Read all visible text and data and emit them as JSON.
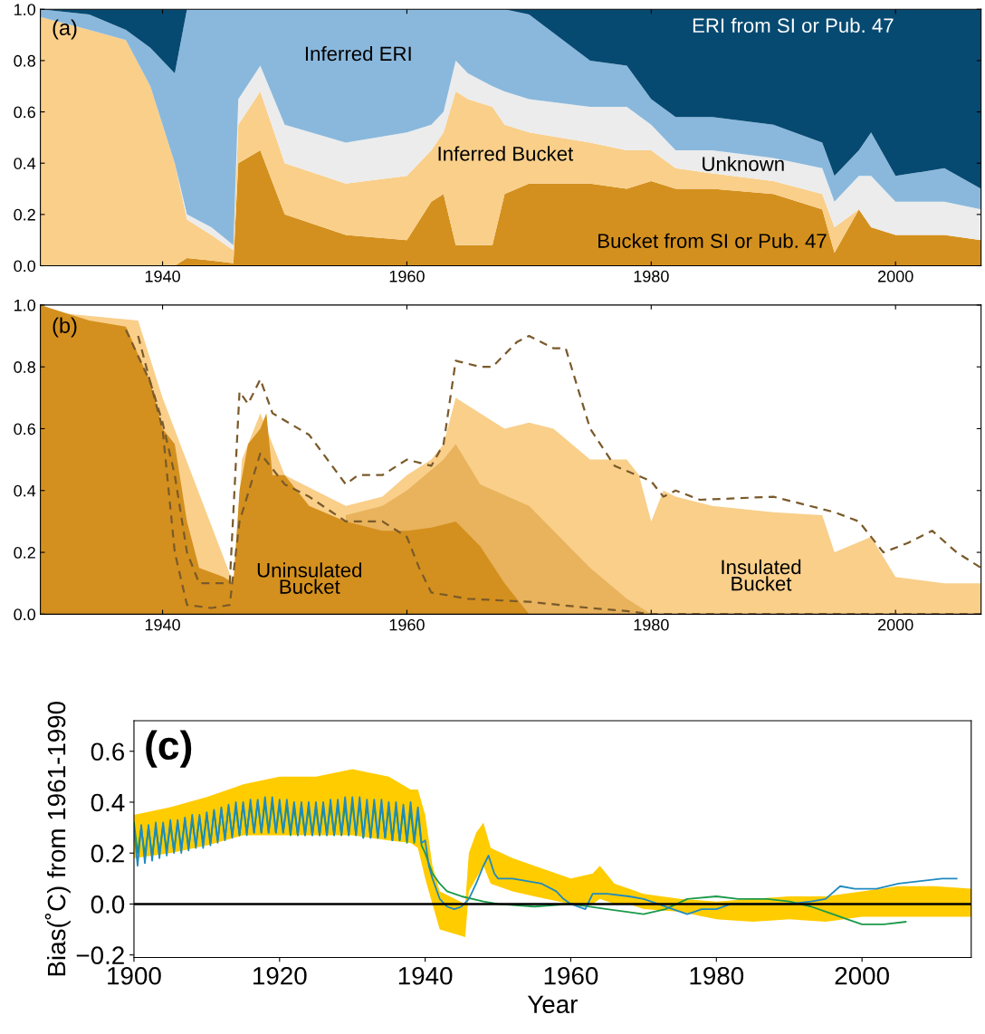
{
  "chart_data": [
    {
      "type": "area",
      "stacked": true,
      "xlim": [
        1930,
        2007
      ],
      "ylim": [
        0,
        1.0
      ],
      "xticks": [
        1940,
        1960,
        1980,
        2000
      ],
      "yticks": [
        {
          "value": 0,
          "label": "0.0"
        },
        {
          "value": 0.2,
          "label": "0.2"
        },
        {
          "value": 0.4,
          "label": "0.4"
        },
        {
          "value": 0.6,
          "label": "0.6"
        },
        {
          "value": 0.8,
          "label": "0.8"
        },
        {
          "value": 1.0,
          "label": "1.0"
        }
      ],
      "grid": false,
      "x": [
        1930,
        1934,
        1937,
        1939,
        1941,
        1942,
        1944,
        1945.8,
        1946.2,
        1948,
        1950,
        1955,
        1960,
        1962,
        1963,
        1964,
        1965,
        1967,
        1968,
        1970,
        1975,
        1978,
        1980,
        1982,
        1985,
        1990,
        1994,
        1995,
        1997,
        1998,
        2000,
        2004,
        2007
      ],
      "series": [
        {
          "color": "#d4901e",
          "values": [
            0,
            0,
            0,
            0,
            0,
            0.03,
            0.02,
            0.01,
            0.4,
            0.45,
            0.2,
            0.12,
            0.1,
            0.25,
            0.28,
            0.08,
            0.08,
            0.08,
            0.28,
            0.32,
            0.32,
            0.3,
            0.33,
            0.3,
            0.3,
            0.28,
            0.22,
            0.05,
            0.22,
            0.15,
            0.12,
            0.12,
            0.1
          ]
        },
        {
          "color": "#f9cf8a",
          "values": [
            0.97,
            0.92,
            0.88,
            0.7,
            0.4,
            0.15,
            0.1,
            0.05,
            0.15,
            0.23,
            0.2,
            0.2,
            0.25,
            0.2,
            0.24,
            0.6,
            0.57,
            0.54,
            0.27,
            0.2,
            0.16,
            0.15,
            0.12,
            0.08,
            0.06,
            0.05,
            0.06,
            0.1,
            0,
            0,
            0,
            0,
            0
          ]
        },
        {
          "color": "#ececec",
          "values": [
            0,
            0,
            0,
            0,
            0,
            0.02,
            0.03,
            0.02,
            0.1,
            0.1,
            0.15,
            0.16,
            0.17,
            0.1,
            0.08,
            0.12,
            0.1,
            0.08,
            0.13,
            0.13,
            0.14,
            0.17,
            0.1,
            0.07,
            0.09,
            0.09,
            0.1,
            0.1,
            0.13,
            0.2,
            0.13,
            0.13,
            0.12
          ]
        },
        {
          "color": "#8ab8dc",
          "values": [
            0.03,
            0.06,
            0.04,
            0.15,
            0.35,
            0.8,
            0.85,
            0.92,
            0.35,
            0.22,
            0.45,
            0.52,
            0.48,
            0.45,
            0.4,
            0.2,
            0.25,
            0.3,
            0.32,
            0.33,
            0.18,
            0.16,
            0.1,
            0.13,
            0.13,
            0.13,
            0.1,
            0.1,
            0.1,
            0.17,
            0.1,
            0.13,
            0.08
          ]
        },
        {
          "color": "#064a72",
          "values": [
            0,
            0.02,
            0.08,
            0.15,
            0.25,
            0,
            0,
            0,
            0,
            0,
            0,
            0,
            0,
            0,
            0,
            0,
            0,
            0,
            0,
            0.02,
            0.2,
            0.22,
            0.35,
            0.42,
            0.42,
            0.45,
            0.52,
            0.65,
            0.55,
            0.48,
            0.65,
            0.62,
            0.7
          ]
        }
      ],
      "annotations": [
        "(a)",
        "Inferred ERI",
        "ERI from SI or Pub. 47",
        "Inferred Bucket",
        "Unknown",
        "Bucket from SI or Pub. 47"
      ]
    },
    {
      "type": "area",
      "xlim": [
        1930,
        2007
      ],
      "ylim": [
        0,
        1.0
      ],
      "xticks": [
        1940,
        1960,
        1980,
        2000
      ],
      "yticks": [
        {
          "value": 0,
          "label": "0.0"
        },
        {
          "value": 0.2,
          "label": "0.2"
        },
        {
          "value": 0.4,
          "label": "0.4"
        },
        {
          "value": 0.6,
          "label": "0.6"
        },
        {
          "value": 0.8,
          "label": "0.8"
        },
        {
          "value": 1.0,
          "label": "1.0"
        }
      ],
      "grid": false,
      "series": [
        {
          "color": "#f9cf8a",
          "x": [
            1930,
            1938,
            1940,
            1945.8,
            1946.5,
            1948,
            1950,
            1955,
            1958,
            1960,
            1962,
            1963,
            1964,
            1966,
            1968,
            1970,
            1972,
            1975,
            1978,
            1979,
            1980,
            1981,
            1982,
            1985,
            1990,
            1994,
            1995,
            1998,
            2000,
            2004,
            2007
          ],
          "values": [
            0.98,
            0.95,
            0.7,
            0.1,
            0.5,
            0.65,
            0.45,
            0.35,
            0.38,
            0.45,
            0.5,
            0.55,
            0.7,
            0.65,
            0.6,
            0.62,
            0.6,
            0.5,
            0.5,
            0.45,
            0.3,
            0.4,
            0.38,
            0.35,
            0.33,
            0.32,
            0.2,
            0.25,
            0.12,
            0.1,
            0.1
          ]
        },
        {
          "color": "#e8b35c",
          "x": [
            1955,
            1958,
            1960,
            1963,
            1964,
            1966,
            1970,
            1975,
            1978,
            1980
          ],
          "values": [
            0.32,
            0.35,
            0.4,
            0.5,
            0.55,
            0.42,
            0.35,
            0.15,
            0.05,
            0
          ]
        },
        {
          "color": "#d4901e",
          "x": [
            1930,
            1934,
            1937,
            1939,
            1940,
            1941,
            1942,
            1943,
            1945,
            1945.8,
            1946.3,
            1947,
            1948,
            1948.5,
            1949,
            1950,
            1952,
            1955,
            1958,
            1960,
            1962,
            1964,
            1966,
            1968,
            1970,
            2007
          ],
          "values": [
            1.0,
            0.95,
            0.93,
            0.75,
            0.6,
            0.55,
            0.3,
            0.15,
            0.12,
            0.1,
            0.4,
            0.55,
            0.6,
            0.65,
            0.45,
            0.45,
            0.35,
            0.3,
            0.27,
            0.27,
            0.28,
            0.3,
            0.22,
            0.1,
            0,
            0
          ]
        },
        {
          "type": "line",
          "line_style": "dashed",
          "color": "#7a5a2a",
          "x": [
            1937,
            1939,
            1940,
            1941,
            1942,
            1943,
            1945.5,
            1946.3,
            1947,
            1948,
            1949,
            1952,
            1955,
            1956,
            1958,
            1960,
            1962,
            1963,
            1964,
            1966,
            1967,
            1969,
            1970,
            1972,
            1973,
            1975,
            1977,
            1980,
            1981,
            1982,
            1984,
            1990,
            1995,
            1997,
            1999,
            2001,
            2003,
            2005,
            2007
          ],
          "values": [
            0.92,
            0.75,
            0.62,
            0.45,
            0.2,
            0.1,
            0.1,
            0.72,
            0.68,
            0.76,
            0.65,
            0.58,
            0.42,
            0.45,
            0.45,
            0.5,
            0.48,
            0.55,
            0.82,
            0.8,
            0.8,
            0.88,
            0.9,
            0.86,
            0.86,
            0.6,
            0.48,
            0.43,
            0.38,
            0.4,
            0.37,
            0.38,
            0.33,
            0.3,
            0.2,
            0.23,
            0.27,
            0.2,
            0.15
          ]
        },
        {
          "type": "line",
          "line_style": "dashed",
          "color": "#7a5a2a",
          "x": [
            1938,
            1940,
            1941,
            1942,
            1944,
            1945.5,
            1946.3,
            1948,
            1949,
            1950,
            1952,
            1955,
            1958,
            1960,
            1961,
            1962,
            1965,
            1970,
            1975,
            1978,
            1980,
            2007
          ],
          "values": [
            0.9,
            0.6,
            0.2,
            0.03,
            0.02,
            0.03,
            0.3,
            0.52,
            0.47,
            0.42,
            0.38,
            0.3,
            0.3,
            0.25,
            0.15,
            0.07,
            0.05,
            0.04,
            0.02,
            0.01,
            0,
            0
          ]
        }
      ],
      "annotations": [
        "(b)",
        "Uninsulated\nBucket",
        "Insulated\nBucket"
      ]
    },
    {
      "type": "line",
      "xlim": [
        1900,
        2015
      ],
      "ylim": [
        -0.21,
        0.72
      ],
      "xticks": [
        1900,
        1920,
        1940,
        1960,
        1980,
        2000
      ],
      "yticks": [
        {
          "value": -0.2,
          "label": "−0.2"
        },
        {
          "value": 0,
          "label": "0.0"
        },
        {
          "value": 0.2,
          "label": "0.2"
        },
        {
          "value": 0.4,
          "label": "0.4"
        },
        {
          "value": 0.6,
          "label": "0.6"
        }
      ],
      "xlabel": "Year",
      "ylabel": "Bias(˚C) from 1961-1990",
      "grid": false,
      "marker": "none",
      "ref_lines": [
        {
          "axis": "y",
          "value": 0,
          "color": "#000000"
        }
      ],
      "annotations": [
        "(c)"
      ],
      "series": [
        {
          "color": "#ffcc00",
          "x": [
            1900,
            1905,
            1910,
            1915,
            1920,
            1925,
            1930,
            1935,
            1938,
            1939,
            1940,
            1941,
            1942,
            1945.5,
            1946,
            1947,
            1948,
            1949,
            1952,
            1955,
            1960,
            1963,
            1964,
            1966,
            1968,
            1970,
            1975,
            1980,
            1985,
            1990,
            1995,
            2000,
            2005,
            2010,
            2015
          ],
          "values": [
            null,
            null,
            null,
            null,
            null,
            null,
            null,
            null,
            null,
            null,
            null,
            null,
            null,
            null,
            null,
            null,
            null,
            null,
            null,
            null,
            null,
            null,
            null,
            null,
            null,
            null,
            null,
            null,
            null,
            null,
            null,
            null,
            null,
            null,
            null
          ],
          "lower": [
            0.18,
            0.2,
            0.23,
            0.27,
            0.27,
            0.27,
            0.27,
            0.25,
            0.24,
            0.22,
            0.1,
            0.0,
            -0.1,
            -0.13,
            0.05,
            0.1,
            0.15,
            0.08,
            0.05,
            0.03,
            0.0,
            0.0,
            0.02,
            0.0,
            0.0,
            -0.02,
            -0.03,
            -0.06,
            -0.07,
            -0.06,
            -0.07,
            -0.05,
            -0.05,
            -0.05,
            -0.05
          ],
          "upper": [
            0.35,
            0.38,
            0.42,
            0.47,
            0.5,
            0.5,
            0.53,
            0.5,
            0.45,
            0.45,
            0.35,
            0.15,
            0.05,
            0.0,
            0.2,
            0.28,
            0.32,
            0.22,
            0.18,
            0.15,
            0.1,
            0.12,
            0.15,
            0.08,
            0.06,
            0.04,
            0.02,
            0.01,
            0.02,
            0.03,
            0.03,
            0.05,
            0.07,
            0.07,
            0.06
          ]
        },
        {
          "color": "#1a9a4a",
          "x": [
            1900,
            1900.5,
            1901,
            1901.5,
            1902,
            1902.5,
            1903,
            1903.5,
            1904,
            1904.5,
            1905,
            1905.5,
            1906,
            1906.5,
            1907,
            1907.5,
            1908,
            1908.5,
            1909,
            1909.5,
            1910,
            1910.5,
            1911,
            1911.5,
            1912,
            1912.5,
            1913,
            1913.5,
            1914,
            1914.5,
            1915,
            1915.5,
            1916,
            1916.5,
            1917,
            1917.5,
            1918,
            1918.5,
            1919,
            1919.5,
            1920,
            1920.5,
            1921,
            1921.5,
            1922,
            1922.5,
            1923,
            1923.5,
            1924,
            1924.5,
            1925,
            1925.5,
            1926,
            1926.5,
            1927,
            1927.5,
            1928,
            1928.5,
            1929,
            1929.5,
            1930,
            1930.5,
            1931,
            1931.5,
            1932,
            1932.5,
            1933,
            1933.5,
            1934,
            1934.5,
            1935,
            1935.5,
            1936,
            1936.5,
            1937,
            1937.5,
            1938,
            1938.5,
            1939,
            1939.5,
            1940,
            1941,
            1942,
            1943,
            1945,
            1948,
            1950,
            1955,
            1960,
            1965,
            1970,
            1973,
            1976,
            1980,
            1983,
            1987,
            1990,
            1993,
            1996,
            1998,
            2000,
            2003,
            2006
          ],
          "values": [
            0.32,
            0.2,
            0.3,
            0.19,
            0.3,
            0.19,
            0.3,
            0.2,
            0.31,
            0.21,
            0.31,
            0.21,
            0.32,
            0.22,
            0.33,
            0.22,
            0.33,
            0.23,
            0.34,
            0.24,
            0.35,
            0.24,
            0.36,
            0.25,
            0.37,
            0.26,
            0.38,
            0.27,
            0.38,
            0.27,
            0.39,
            0.28,
            0.39,
            0.28,
            0.4,
            0.28,
            0.4,
            0.28,
            0.4,
            0.28,
            0.39,
            0.28,
            0.39,
            0.27,
            0.38,
            0.27,
            0.38,
            0.27,
            0.38,
            0.27,
            0.38,
            0.27,
            0.38,
            0.27,
            0.39,
            0.27,
            0.39,
            0.27,
            0.39,
            0.27,
            0.4,
            0.27,
            0.4,
            0.26,
            0.39,
            0.26,
            0.39,
            0.26,
            0.39,
            0.26,
            0.38,
            0.25,
            0.38,
            0.25,
            0.37,
            0.24,
            0.37,
            0.24,
            0.36,
            0.23,
            0.2,
            0.12,
            0.08,
            0.05,
            0.03,
            0.01,
            0.0,
            -0.01,
            0.0,
            -0.02,
            -0.04,
            -0.02,
            0.02,
            0.03,
            0.02,
            0.02,
            0.01,
            -0.01,
            -0.04,
            -0.06,
            -0.08,
            -0.08,
            -0.07
          ]
        },
        {
          "color": "#1f8ac0",
          "x": [
            1900,
            1900.5,
            1901,
            1901.5,
            1902,
            1902.5,
            1903,
            1903.5,
            1904,
            1904.5,
            1905,
            1905.5,
            1906,
            1906.5,
            1907,
            1907.5,
            1908,
            1908.5,
            1909,
            1909.5,
            1910,
            1910.5,
            1911,
            1911.5,
            1912,
            1912.5,
            1913,
            1913.5,
            1914,
            1914.5,
            1915,
            1915.5,
            1916,
            1916.5,
            1917,
            1917.5,
            1918,
            1918.5,
            1919,
            1919.5,
            1920,
            1920.5,
            1921,
            1921.5,
            1922,
            1922.5,
            1923,
            1923.5,
            1924,
            1924.5,
            1925,
            1925.5,
            1926,
            1926.5,
            1927,
            1927.5,
            1928,
            1928.5,
            1929,
            1929.5,
            1930,
            1930.5,
            1931,
            1931.5,
            1932,
            1932.5,
            1933,
            1933.5,
            1934,
            1934.5,
            1935,
            1935.5,
            1936,
            1936.5,
            1937,
            1937.5,
            1938,
            1938.5,
            1939,
            1939.5,
            1940,
            1940.5,
            1941,
            1942,
            1943,
            1944,
            1945,
            1946,
            1947,
            1948,
            1948.7,
            1949.5,
            1950,
            1952,
            1954,
            1956,
            1958,
            1959,
            1960,
            1962,
            1963,
            1965,
            1968,
            1970,
            1972,
            1974,
            1976,
            1978,
            1980,
            1982,
            1985,
            1988,
            1990,
            1993,
            1995,
            1997,
            1999,
            2002,
            2005,
            2008,
            2011,
            2013
          ],
          "values": [
            0.3,
            0.15,
            0.31,
            0.16,
            0.31,
            0.17,
            0.32,
            0.18,
            0.32,
            0.19,
            0.33,
            0.2,
            0.33,
            0.2,
            0.34,
            0.21,
            0.35,
            0.22,
            0.35,
            0.22,
            0.36,
            0.23,
            0.37,
            0.24,
            0.38,
            0.25,
            0.39,
            0.26,
            0.4,
            0.27,
            0.4,
            0.27,
            0.41,
            0.28,
            0.41,
            0.28,
            0.42,
            0.28,
            0.42,
            0.28,
            0.41,
            0.28,
            0.41,
            0.28,
            0.4,
            0.27,
            0.4,
            0.27,
            0.4,
            0.27,
            0.4,
            0.27,
            0.4,
            0.27,
            0.41,
            0.27,
            0.41,
            0.27,
            0.42,
            0.27,
            0.42,
            0.27,
            0.42,
            0.26,
            0.41,
            0.26,
            0.41,
            0.26,
            0.41,
            0.26,
            0.4,
            0.25,
            0.4,
            0.25,
            0.39,
            0.25,
            0.4,
            0.25,
            0.38,
            0.24,
            0.25,
            0.15,
            0.1,
            0.02,
            -0.01,
            -0.02,
            -0.01,
            0.02,
            0.08,
            0.15,
            0.19,
            0.12,
            0.1,
            0.1,
            0.09,
            0.08,
            0.05,
            0.02,
            0.0,
            -0.02,
            0.04,
            0.04,
            0.03,
            0.02,
            0.0,
            -0.02,
            -0.04,
            -0.02,
            -0.02,
            0.0,
            0.0,
            0.0,
            0.0,
            0.01,
            0.02,
            0.07,
            0.06,
            0.06,
            0.08,
            0.09,
            0.1,
            0.1
          ]
        }
      ]
    }
  ]
}
